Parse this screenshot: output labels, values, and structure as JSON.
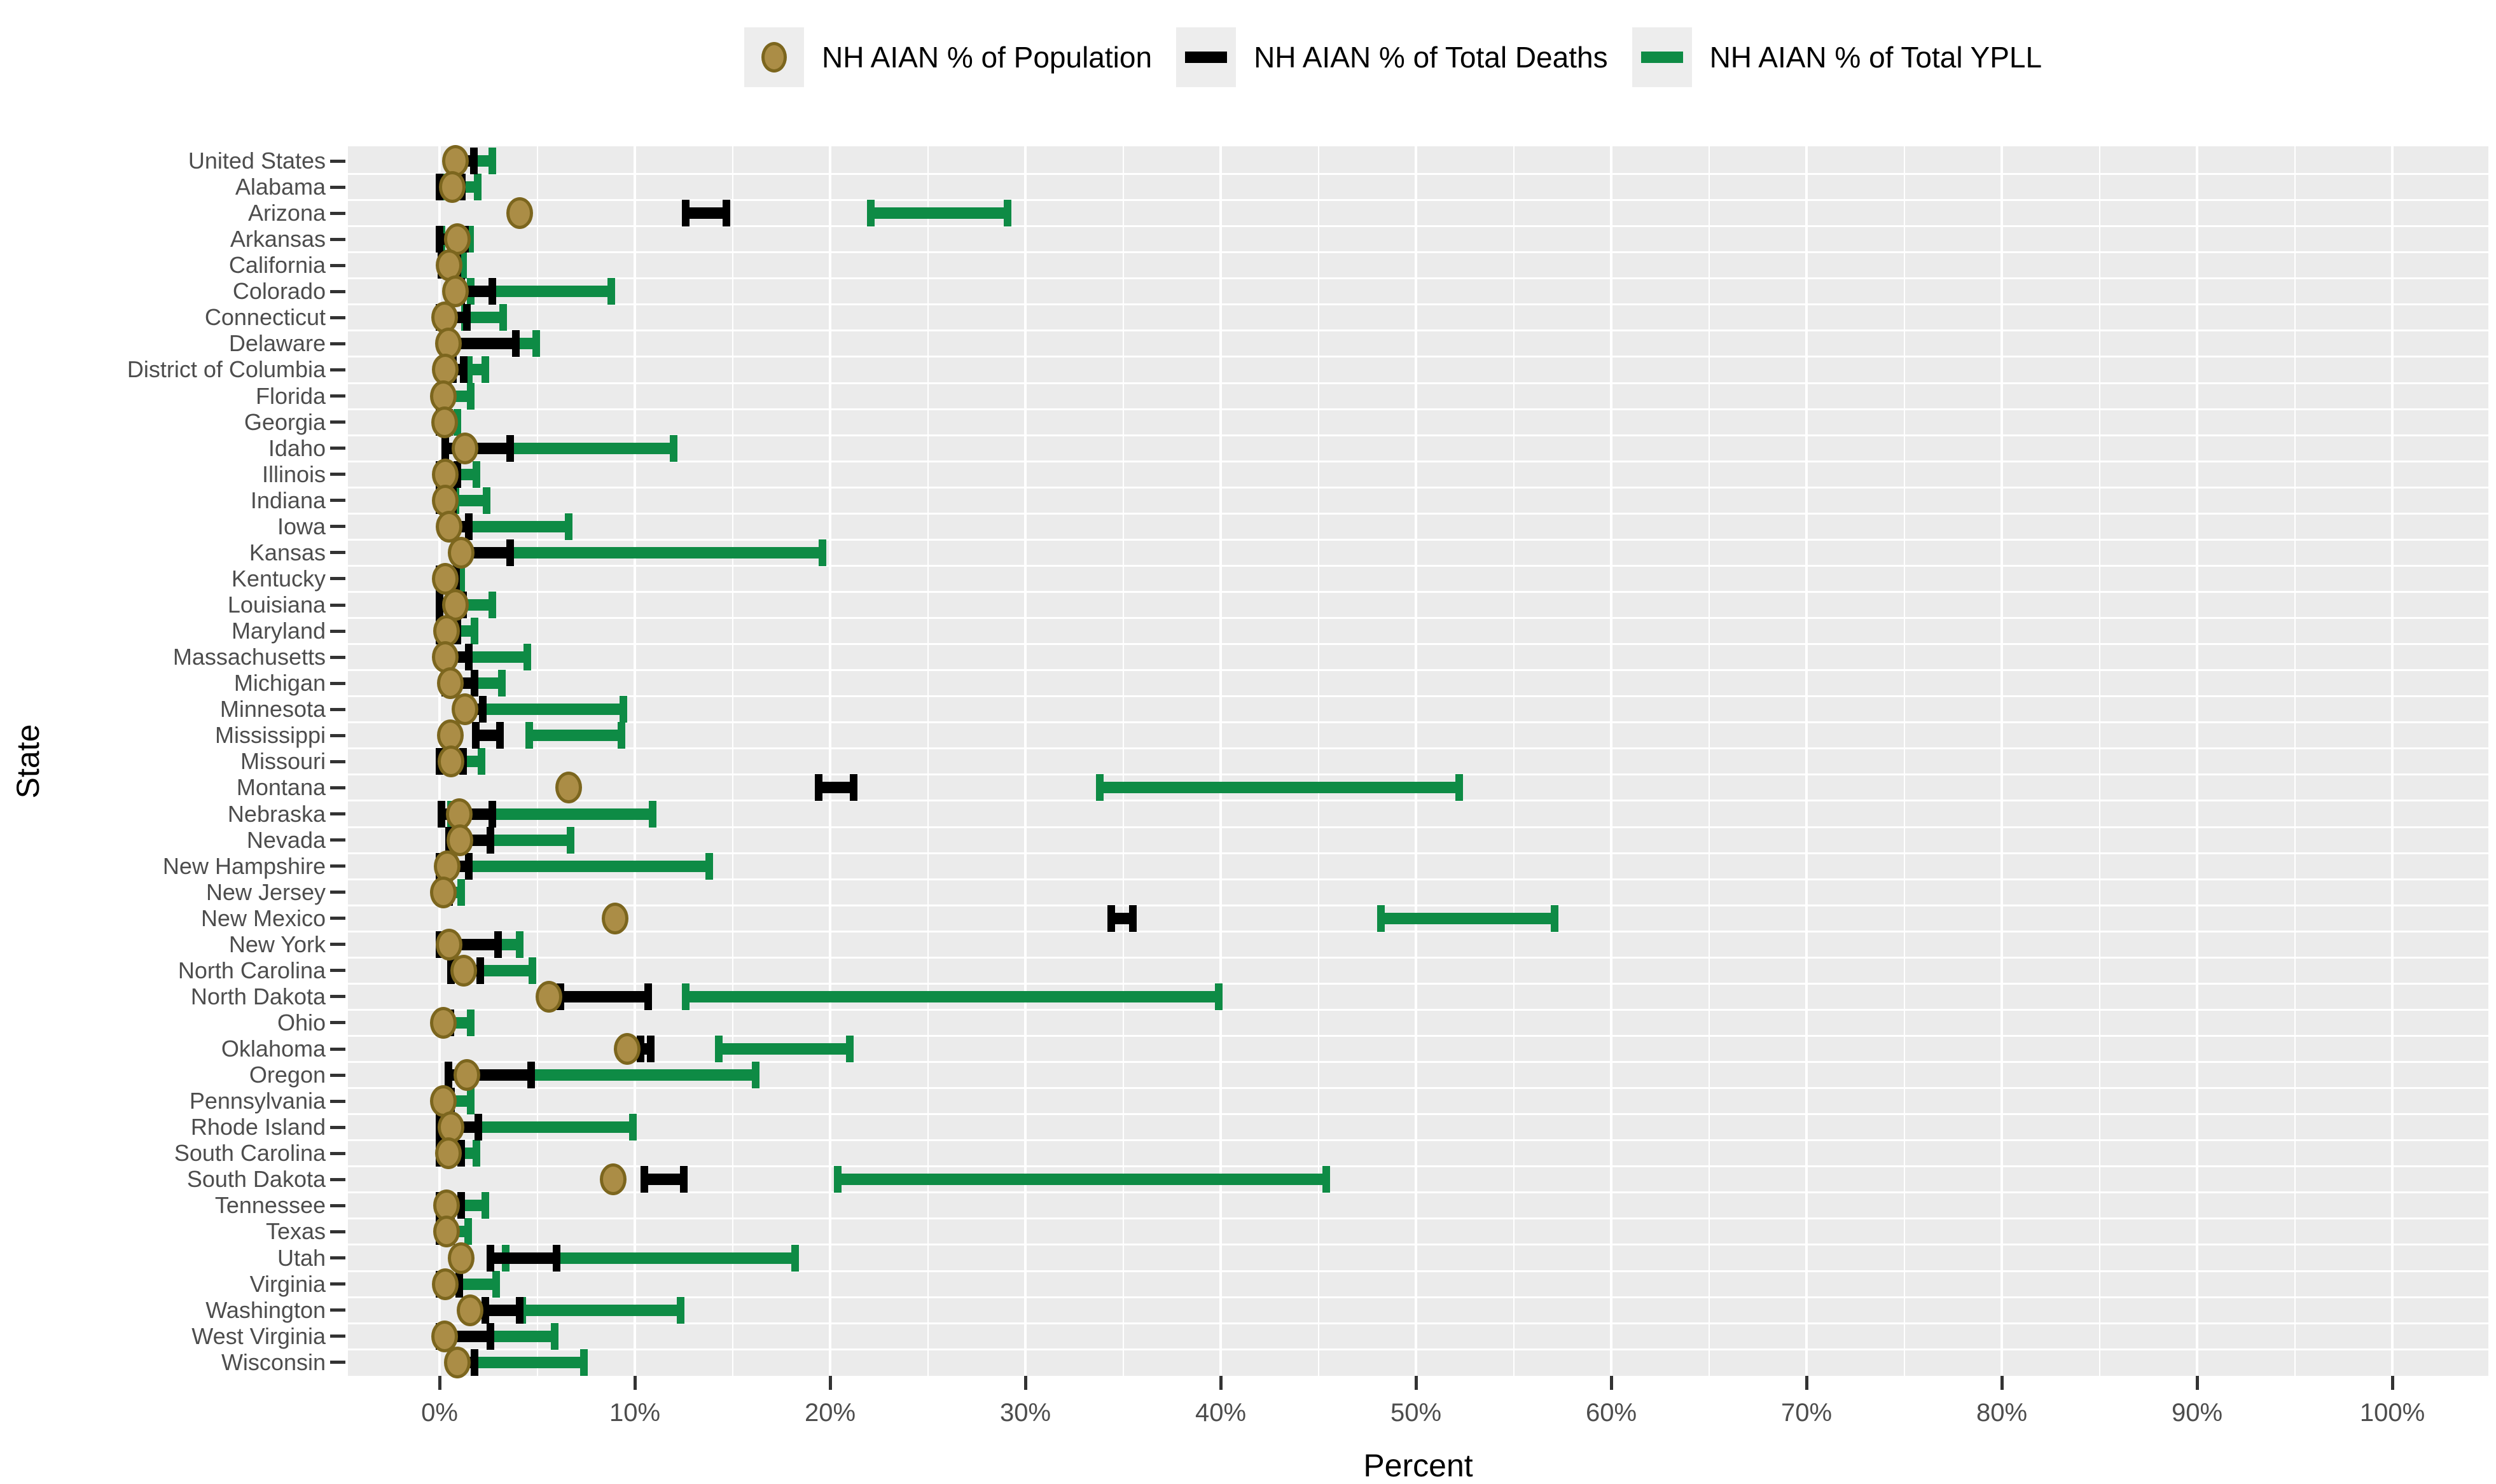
{
  "colors": {
    "panel_bg": "#ebebeb",
    "grid": "#ffffff",
    "green": "#0e8b45",
    "black": "#000000",
    "dot_fill": "#ab8d46",
    "dot_border": "#7c661e",
    "tick": "#333333",
    "tick_label": "#4d4d4d",
    "legend_key_bg": "#ededed"
  },
  "legend": {
    "items": [
      {
        "label": "NH AIAN % of Population",
        "marker": "dot"
      },
      {
        "label": "NH AIAN % of Total Deaths",
        "marker": "bar-black"
      },
      {
        "label": "NH AIAN % of Total YPLL",
        "marker": "bar-green"
      }
    ]
  },
  "chart_data": {
    "type": "dumbbell-range",
    "title": "",
    "xlabel": "Percent",
    "ylabel": "State",
    "xlim": [
      0,
      100
    ],
    "x_major_ticks_pct": [
      0,
      10,
      20,
      30,
      40,
      50,
      60,
      70,
      80,
      90,
      100
    ],
    "x_tick_labels": [
      "0%",
      "10%",
      "20%",
      "30%",
      "40%",
      "50%",
      "60%",
      "70%",
      "80%",
      "90%",
      "100%"
    ],
    "x_minor_gridlines_pct": [
      5,
      15,
      25,
      35,
      45,
      55,
      65,
      75,
      85,
      95
    ],
    "grid": "white-on-gray",
    "legend_position": "top",
    "series": [
      {
        "name": "NH AIAN % of Population",
        "geom": "point",
        "color": "#ab8d46"
      },
      {
        "name": "NH AIAN % of Total Deaths",
        "geom": "range-bar",
        "color": "#000000"
      },
      {
        "name": "NH AIAN % of Total YPLL",
        "geom": "range-bar",
        "color": "#0e8b45"
      }
    ],
    "rows": [
      {
        "state": "United States",
        "population_pct": 0.8,
        "deaths_pct": [
          0.9,
          1.75
        ],
        "ypll_pct": [
          1.75,
          2.7
        ]
      },
      {
        "state": "Alabama",
        "population_pct": 0.65,
        "deaths_pct": [
          0,
          1.15
        ],
        "ypll_pct": [
          0.05,
          1.95
        ]
      },
      {
        "state": "Arizona",
        "population_pct": 4.1,
        "deaths_pct": [
          12.6,
          14.7
        ],
        "ypll_pct": [
          22.1,
          29.1
        ]
      },
      {
        "state": "Arkansas",
        "population_pct": 0.9,
        "deaths_pct": [
          0,
          1.3
        ],
        "ypll_pct": [
          0.1,
          1.55
        ]
      },
      {
        "state": "California",
        "population_pct": 0.5,
        "deaths_pct": [
          0.1,
          0.9
        ],
        "ypll_pct": [
          0.6,
          1.2
        ]
      },
      {
        "state": "Colorado",
        "population_pct": 0.8,
        "deaths_pct": [
          1.1,
          2.7
        ],
        "ypll_pct": [
          1.6,
          8.8
        ]
      },
      {
        "state": "Connecticut",
        "population_pct": 0.25,
        "deaths_pct": [
          0,
          1.4
        ],
        "ypll_pct": [
          1.3,
          3.25
        ]
      },
      {
        "state": "Delaware",
        "population_pct": 0.45,
        "deaths_pct": [
          0.45,
          3.9
        ],
        "ypll_pct": [
          3.9,
          4.95
        ]
      },
      {
        "state": "District of Columbia",
        "population_pct": 0.3,
        "deaths_pct": [
          0.7,
          1.25
        ],
        "ypll_pct": [
          1.5,
          2.35
        ]
      },
      {
        "state": "Florida",
        "population_pct": 0.2,
        "deaths_pct": [
          0,
          0.4
        ],
        "ypll_pct": [
          0.3,
          1.6
        ]
      },
      {
        "state": "Georgia",
        "population_pct": 0.25,
        "deaths_pct": [
          0,
          0.5
        ],
        "ypll_pct": [
          0.2,
          0.9
        ]
      },
      {
        "state": "Idaho",
        "population_pct": 1.3,
        "deaths_pct": [
          0.3,
          3.6
        ],
        "ypll_pct": [
          3.6,
          12.0
        ]
      },
      {
        "state": "Illinois",
        "population_pct": 0.3,
        "deaths_pct": [
          0,
          0.9
        ],
        "ypll_pct": [
          0.9,
          1.9
        ]
      },
      {
        "state": "Indiana",
        "population_pct": 0.3,
        "deaths_pct": [
          0,
          0.7
        ],
        "ypll_pct": [
          0.8,
          2.4
        ]
      },
      {
        "state": "Iowa",
        "population_pct": 0.5,
        "deaths_pct": [
          0.3,
          1.5
        ],
        "ypll_pct": [
          1.5,
          6.6
        ]
      },
      {
        "state": "Kansas",
        "population_pct": 1.1,
        "deaths_pct": [
          1.1,
          3.6
        ],
        "ypll_pct": [
          3.6,
          19.6
        ]
      },
      {
        "state": "Kentucky",
        "population_pct": 0.3,
        "deaths_pct": [
          0,
          0.85
        ],
        "ypll_pct": [
          0,
          1.1
        ]
      },
      {
        "state": "Louisiana",
        "population_pct": 0.8,
        "deaths_pct": [
          0,
          1.2
        ],
        "ypll_pct": [
          1.2,
          2.7
        ]
      },
      {
        "state": "Maryland",
        "population_pct": 0.35,
        "deaths_pct": [
          0,
          0.9
        ],
        "ypll_pct": [
          0.9,
          1.8
        ]
      },
      {
        "state": "Massachusetts",
        "population_pct": 0.3,
        "deaths_pct": [
          0.3,
          1.5
        ],
        "ypll_pct": [
          1.5,
          4.5
        ]
      },
      {
        "state": "Michigan",
        "population_pct": 0.55,
        "deaths_pct": [
          0.3,
          1.8
        ],
        "ypll_pct": [
          1.8,
          3.2
        ]
      },
      {
        "state": "Minnesota",
        "population_pct": 1.3,
        "deaths_pct": [
          1.3,
          2.2
        ],
        "ypll_pct": [
          2.2,
          9.4
        ]
      },
      {
        "state": "Mississippi",
        "population_pct": 0.55,
        "deaths_pct": [
          1.85,
          3.1
        ],
        "ypll_pct": [
          4.6,
          9.3
        ]
      },
      {
        "state": "Missouri",
        "population_pct": 0.6,
        "deaths_pct": [
          0,
          1.2
        ],
        "ypll_pct": [
          1.2,
          2.15
        ]
      },
      {
        "state": "Montana",
        "population_pct": 6.6,
        "deaths_pct": [
          19.4,
          21.2
        ],
        "ypll_pct": [
          33.8,
          52.2
        ]
      },
      {
        "state": "Nebraska",
        "population_pct": 1.0,
        "deaths_pct": [
          0.1,
          2.7
        ],
        "ypll_pct": [
          0.6,
          10.9
        ]
      },
      {
        "state": "Nevada",
        "population_pct": 1.05,
        "deaths_pct": [
          0.5,
          2.6
        ],
        "ypll_pct": [
          0.7,
          6.7
        ]
      },
      {
        "state": "New Hampshire",
        "population_pct": 0.4,
        "deaths_pct": [
          0,
          1.5
        ],
        "ypll_pct": [
          1.5,
          13.8
        ]
      },
      {
        "state": "New Jersey",
        "population_pct": 0.2,
        "deaths_pct": [
          0,
          0.5
        ],
        "ypll_pct": [
          0.3,
          1.1
        ]
      },
      {
        "state": "New Mexico",
        "population_pct": 9.0,
        "deaths_pct": [
          34.4,
          35.5
        ],
        "ypll_pct": [
          48.2,
          57.1
        ]
      },
      {
        "state": "New York",
        "population_pct": 0.5,
        "deaths_pct": [
          0,
          3.0
        ],
        "ypll_pct": [
          3.0,
          4.1
        ]
      },
      {
        "state": "North Carolina",
        "population_pct": 1.25,
        "deaths_pct": [
          0.6,
          2.1
        ],
        "ypll_pct": [
          2.1,
          4.75
        ]
      },
      {
        "state": "North Dakota",
        "population_pct": 5.6,
        "deaths_pct": [
          6.2,
          10.7
        ],
        "ypll_pct": [
          12.6,
          39.9
        ]
      },
      {
        "state": "Ohio",
        "population_pct": 0.2,
        "deaths_pct": [
          0,
          0.55
        ],
        "ypll_pct": [
          0.55,
          1.6
        ]
      },
      {
        "state": "Oklahoma",
        "population_pct": 9.6,
        "deaths_pct": [
          10.3,
          10.8
        ],
        "ypll_pct": [
          14.3,
          21.0
        ]
      },
      {
        "state": "Oregon",
        "population_pct": 1.4,
        "deaths_pct": [
          0.45,
          4.7
        ],
        "ypll_pct": [
          4.7,
          16.2
        ]
      },
      {
        "state": "Pennsylvania",
        "population_pct": 0.2,
        "deaths_pct": [
          0,
          0.6
        ],
        "ypll_pct": [
          0.6,
          1.6
        ]
      },
      {
        "state": "Rhode Island",
        "population_pct": 0.6,
        "deaths_pct": [
          0,
          2.0
        ],
        "ypll_pct": [
          2.0,
          9.9
        ]
      },
      {
        "state": "South Carolina",
        "population_pct": 0.45,
        "deaths_pct": [
          0,
          1.1
        ],
        "ypll_pct": [
          1.1,
          1.9
        ]
      },
      {
        "state": "South Dakota",
        "population_pct": 8.9,
        "deaths_pct": [
          10.5,
          12.5
        ],
        "ypll_pct": [
          20.4,
          45.4
        ]
      },
      {
        "state": "Tennessee",
        "population_pct": 0.35,
        "deaths_pct": [
          0,
          1.1
        ],
        "ypll_pct": [
          1.1,
          2.35
        ]
      },
      {
        "state": "Texas",
        "population_pct": 0.35,
        "deaths_pct": [
          0,
          0.6
        ],
        "ypll_pct": [
          0.5,
          1.45
        ]
      },
      {
        "state": "Utah",
        "population_pct": 1.1,
        "deaths_pct": [
          2.6,
          6.0
        ],
        "ypll_pct": [
          3.4,
          18.2
        ]
      },
      {
        "state": "Virginia",
        "population_pct": 0.3,
        "deaths_pct": [
          0,
          1.0
        ],
        "ypll_pct": [
          1.0,
          2.9
        ]
      },
      {
        "state": "Washington",
        "population_pct": 1.55,
        "deaths_pct": [
          2.35,
          4.1
        ],
        "ypll_pct": [
          4.25,
          12.35
        ]
      },
      {
        "state": "West Virginia",
        "population_pct": 0.25,
        "deaths_pct": [
          0,
          2.6
        ],
        "ypll_pct": [
          2.6,
          5.9
        ]
      },
      {
        "state": "Wisconsin",
        "population_pct": 0.9,
        "deaths_pct": [
          0.8,
          1.8
        ],
        "ypll_pct": [
          1.8,
          7.4
        ]
      }
    ]
  }
}
